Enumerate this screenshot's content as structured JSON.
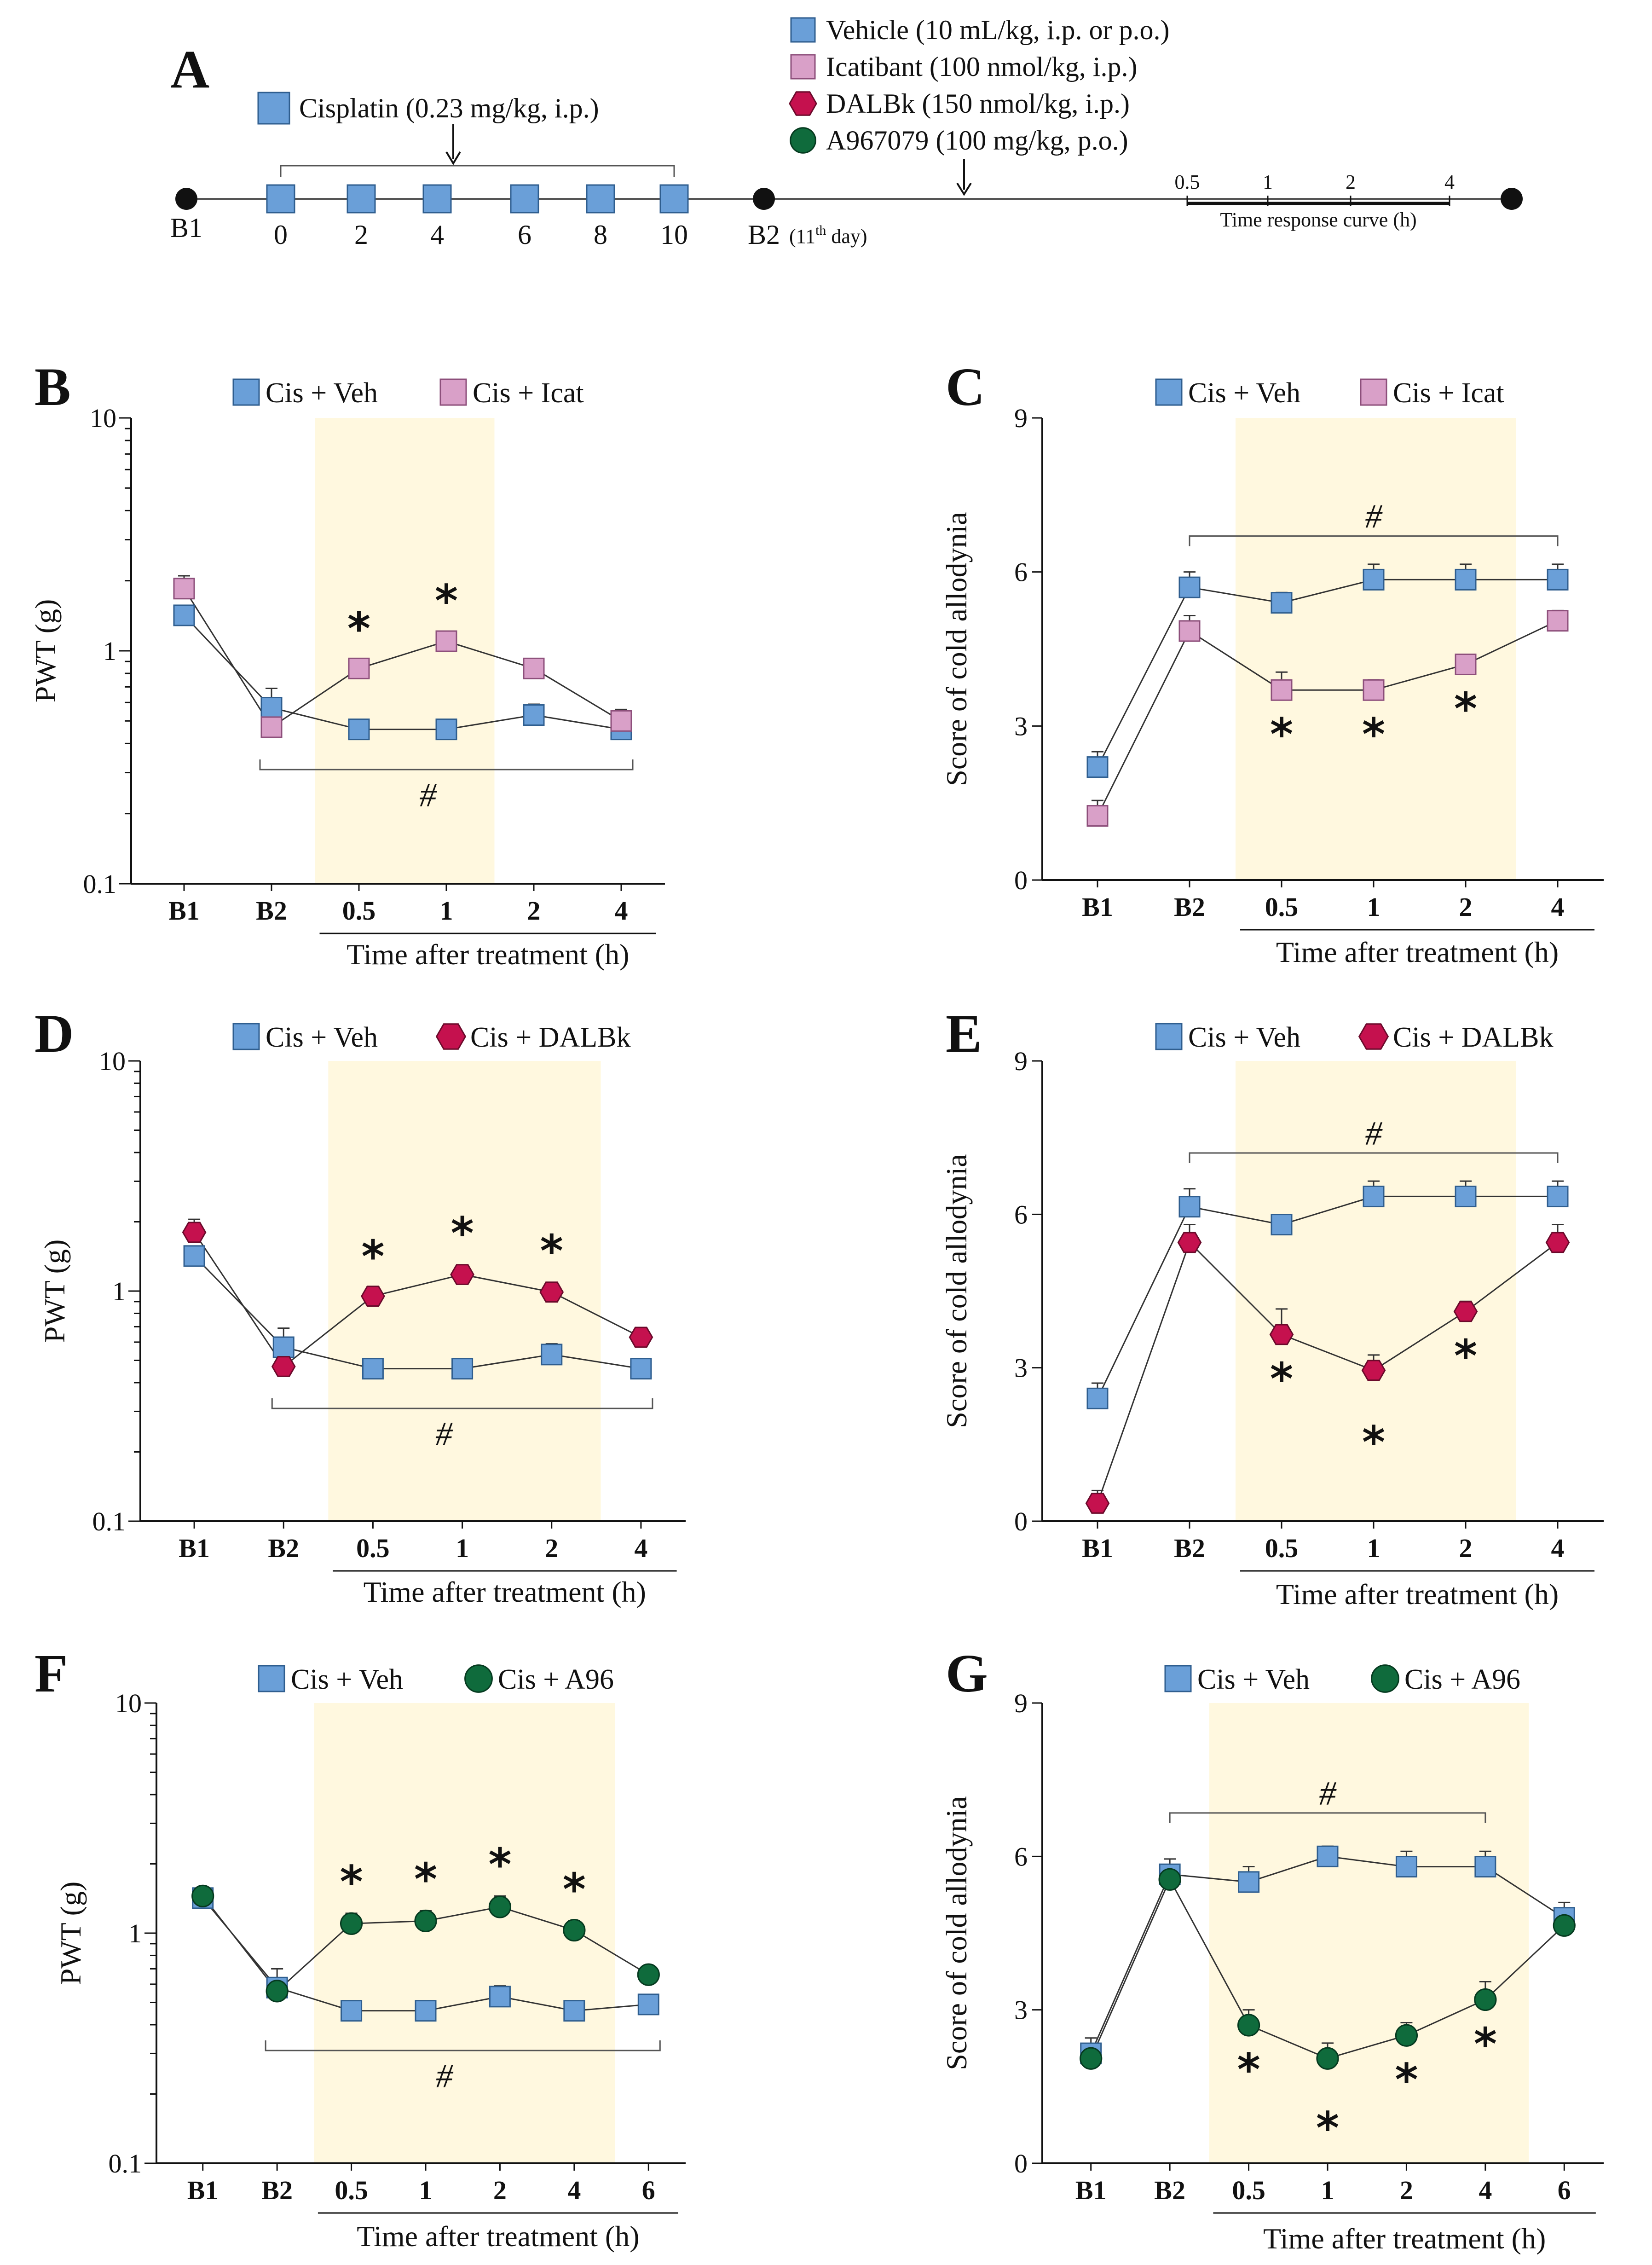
{
  "colors": {
    "veh": "#6a9fd8",
    "veh_stroke": "#2f5e8f",
    "icat": "#d9a0c8",
    "icat_stroke": "#8d4f7b",
    "dalbk": "#c5114e",
    "dalbk_stroke": "#6b0a2b",
    "a96": "#0f6b3c",
    "a96_stroke": "#053a1f",
    "shade": "#fff8df",
    "star_icat": "#e020c0",
    "star_dalbk": "#c5114e",
    "star_a96": "#0f6b3c",
    "hash": "#1a2a9a"
  },
  "panelA": {
    "letter": "A",
    "cisplatin_label": "Cisplatin (0.23 mg/kg, i.p.)",
    "legend": [
      {
        "label": "Vehicle (10 mL/kg, i.p. or p.o.)",
        "marker": "square",
        "color": "veh"
      },
      {
        "label": "Icatibant (100 nmol/kg, i.p.)",
        "marker": "square",
        "color": "icat"
      },
      {
        "label": "DALBk (150 nmol/kg, i.p.)",
        "marker": "hexagon",
        "color": "dalbk"
      },
      {
        "label": "A967079 (100 mg/kg, p.o.)",
        "marker": "circle",
        "color": "a96"
      }
    ],
    "b1_label": "B1",
    "days": [
      "0",
      "2",
      "4",
      "6",
      "8",
      "10"
    ],
    "b2_label": "B2",
    "b2_day_num": "(11",
    "b2_day_sup": "th",
    "b2_day_end": " day)",
    "tc_ticks": [
      "0.5",
      "1",
      "2",
      "4"
    ],
    "tc_label": "Time response curve (h)"
  },
  "chart_data": [
    {
      "id": "B",
      "letter": "B",
      "type": "line",
      "scale": "log",
      "ylabel": "PWT (g)",
      "xlabel": "Time after treatment (h)",
      "yticks": [
        "0.1",
        "1",
        "10"
      ],
      "ylim": [
        0.1,
        10
      ],
      "categories": [
        "B1",
        "B2",
        "0.5",
        "1",
        "2",
        "4"
      ],
      "series": [
        {
          "name": "Cis + Veh",
          "marker": "square",
          "color": "veh",
          "values": [
            1.42,
            0.57,
            0.46,
            0.46,
            0.53,
            0.46
          ],
          "errors": [
            0.14,
            0.12,
            0.03,
            0.03,
            0.06,
            0.04
          ]
        },
        {
          "name": "Cis + Icat",
          "marker": "square",
          "color": "icat",
          "values": [
            1.85,
            0.47,
            0.84,
            1.1,
            0.84,
            0.5
          ],
          "errors": [
            0.25,
            0.04,
            0.07,
            0.1,
            0.06,
            0.06
          ]
        }
      ],
      "star_color": "star_icat",
      "stars_at": [
        2,
        3
      ],
      "stars_series": 1,
      "stars_side": "above",
      "hash": "#",
      "hash_range": [
        1,
        5
      ]
    },
    {
      "id": "C",
      "letter": "C",
      "type": "line",
      "scale": "linear",
      "ylabel": "Score of cold allodynia",
      "xlabel": "Time after treatment (h)",
      "yticks": [
        "0",
        "3",
        "6",
        "9"
      ],
      "ylim": [
        0,
        9
      ],
      "categories": [
        "B1",
        "B2",
        "0.5",
        "1",
        "2",
        "4"
      ],
      "series": [
        {
          "name": "Cis + Veh",
          "marker": "square",
          "color": "veh",
          "values": [
            2.2,
            5.7,
            5.4,
            5.85,
            5.85,
            5.85
          ],
          "errors": [
            0.3,
            0.3,
            0.2,
            0.3,
            0.3,
            0.3
          ]
        },
        {
          "name": "Cis + Icat",
          "marker": "square",
          "color": "icat",
          "values": [
            1.25,
            4.85,
            3.7,
            3.7,
            4.2,
            5.05
          ],
          "errors": [
            0.3,
            0.3,
            0.35,
            0.2,
            0.1,
            0.2
          ]
        }
      ],
      "star_color": "star_icat",
      "stars_at": [
        2,
        3,
        4
      ],
      "stars_series": 1,
      "stars_side": "below",
      "hash": "#",
      "hash_range": [
        1,
        5
      ]
    },
    {
      "id": "D",
      "letter": "D",
      "type": "line",
      "scale": "log",
      "ylabel": "PWT (g)",
      "xlabel": "Time after treatment (h)",
      "yticks": [
        "0.1",
        "1",
        "10"
      ],
      "ylim": [
        0.1,
        10
      ],
      "categories": [
        "B1",
        "B2",
        "0.5",
        "1",
        "2",
        "4"
      ],
      "series": [
        {
          "name": "Cis + Veh",
          "marker": "square",
          "color": "veh",
          "values": [
            1.42,
            0.57,
            0.46,
            0.46,
            0.53,
            0.46
          ],
          "errors": [
            0.14,
            0.12,
            0.03,
            0.03,
            0.06,
            0.04
          ]
        },
        {
          "name": "Cis + DALBk",
          "marker": "hexagon",
          "color": "dalbk",
          "values": [
            1.8,
            0.47,
            0.95,
            1.18,
            0.99,
            0.63
          ],
          "errors": [
            0.25,
            0.04,
            0.08,
            0.12,
            0.1,
            0.06
          ]
        }
      ],
      "star_color": "star_dalbk",
      "stars_at": [
        2,
        3,
        4
      ],
      "stars_series": 1,
      "stars_side": "above",
      "hash": "#",
      "hash_range": [
        1,
        5
      ]
    },
    {
      "id": "E",
      "letter": "E",
      "type": "line",
      "scale": "linear",
      "ylabel": "Score of cold allodynia",
      "xlabel": "Time after treatment (h)",
      "yticks": [
        "0",
        "3",
        "6",
        "9"
      ],
      "ylim": [
        0,
        9
      ],
      "categories": [
        "B1",
        "B2",
        "0.5",
        "1",
        "2",
        "4"
      ],
      "series": [
        {
          "name": "Cis + Veh",
          "marker": "square",
          "color": "veh",
          "values": [
            2.4,
            6.15,
            5.8,
            6.35,
            6.35,
            6.35
          ],
          "errors": [
            0.3,
            0.35,
            0.15,
            0.3,
            0.3,
            0.3
          ]
        },
        {
          "name": "Cis + DALBk",
          "marker": "hexagon",
          "color": "dalbk",
          "values": [
            0.35,
            5.45,
            3.65,
            2.95,
            4.1,
            5.45
          ],
          "errors": [
            0.25,
            0.35,
            0.5,
            0.3,
            0.2,
            0.35
          ]
        }
      ],
      "star_color": "star_dalbk",
      "stars_at": [
        2,
        3,
        4
      ],
      "stars_series": 1,
      "stars_side": "below",
      "hash": "#",
      "hash_range": [
        1,
        5
      ]
    },
    {
      "id": "F",
      "letter": "F",
      "type": "line",
      "scale": "log",
      "ylabel": "PWT (g)",
      "xlabel": "Time after treatment (h)",
      "yticks": [
        "0.1",
        "1",
        "10"
      ],
      "ylim": [
        0.1,
        10
      ],
      "categories": [
        "B1",
        "B2",
        "0.5",
        "1",
        "2",
        "4",
        "6"
      ],
      "series": [
        {
          "name": "Cis + Veh",
          "marker": "square",
          "color": "veh",
          "values": [
            1.42,
            0.58,
            0.46,
            0.46,
            0.53,
            0.46,
            0.49
          ],
          "errors": [
            0.12,
            0.12,
            0.04,
            0.04,
            0.06,
            0.04,
            0.05
          ]
        },
        {
          "name": "Cis + A96",
          "marker": "circle",
          "color": "a96",
          "values": [
            1.45,
            0.56,
            1.1,
            1.13,
            1.3,
            1.03,
            0.66
          ],
          "errors": [
            0.1,
            0.05,
            0.12,
            0.12,
            0.15,
            0.1,
            0.06
          ]
        }
      ],
      "star_color": "star_a96",
      "stars_at": [
        2,
        3,
        4,
        5
      ],
      "stars_series": 1,
      "stars_side": "above",
      "hash": "#",
      "hash_range": [
        1,
        6
      ]
    },
    {
      "id": "G",
      "letter": "G",
      "type": "line",
      "scale": "linear",
      "ylabel": "Score of cold allodynia",
      "xlabel": "Time after treatment (h)",
      "yticks": [
        "0",
        "3",
        "6",
        "9"
      ],
      "ylim": [
        0,
        9
      ],
      "categories": [
        "B1",
        "B2",
        "0.5",
        "1",
        "2",
        "4",
        "6"
      ],
      "series": [
        {
          "name": "Cis + Veh",
          "marker": "square",
          "color": "veh",
          "values": [
            2.15,
            5.65,
            5.5,
            6.0,
            5.8,
            5.8,
            4.8
          ],
          "errors": [
            0.3,
            0.3,
            0.3,
            0.2,
            0.3,
            0.3,
            0.3
          ]
        },
        {
          "name": "Cis + A96",
          "marker": "circle",
          "color": "a96",
          "values": [
            2.05,
            5.55,
            2.7,
            2.05,
            2.5,
            3.2,
            4.65
          ],
          "errors": [
            0.2,
            0.2,
            0.3,
            0.3,
            0.25,
            0.35,
            0.2
          ]
        }
      ],
      "star_color": "star_a96",
      "stars_at": [
        2,
        3,
        4,
        5
      ],
      "stars_series": 1,
      "stars_side": "below",
      "hash": "#",
      "hash_range": [
        1,
        5
      ]
    }
  ]
}
